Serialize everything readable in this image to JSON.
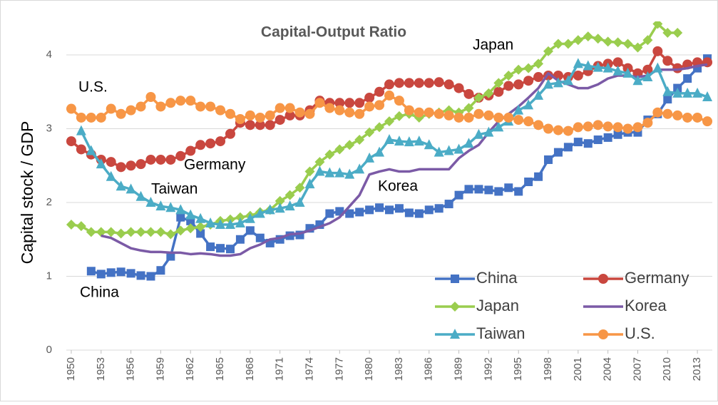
{
  "chart_data": {
    "type": "line",
    "title": "Capital-Output Ratio",
    "y_label": "Capital stock / GDP",
    "annotations": [
      "U.S.",
      "Germany",
      "Taiwan",
      "China",
      "Japan",
      "Korea"
    ],
    "x": [
      1950,
      1951,
      1952,
      1953,
      1954,
      1955,
      1956,
      1957,
      1958,
      1959,
      1960,
      1961,
      1962,
      1963,
      1964,
      1965,
      1966,
      1967,
      1968,
      1969,
      1970,
      1971,
      1972,
      1973,
      1974,
      1975,
      1976,
      1977,
      1978,
      1979,
      1980,
      1981,
      1982,
      1983,
      1984,
      1985,
      1986,
      1987,
      1988,
      1989,
      1990,
      1991,
      1992,
      1993,
      1994,
      1995,
      1996,
      1997,
      1998,
      1999,
      2000,
      2001,
      2002,
      2003,
      2004,
      2005,
      2006,
      2007,
      2008,
      2009,
      2010,
      2011,
      2012,
      2013,
      2014
    ],
    "xlim": [
      1949.5,
      2014.5
    ],
    "xticks": [
      1950,
      1953,
      1956,
      1959,
      1962,
      1965,
      1968,
      1971,
      1974,
      1977,
      1980,
      1983,
      1986,
      1989,
      1992,
      1995,
      1998,
      2001,
      2004,
      2007,
      2010,
      2013
    ],
    "ylim": [
      0,
      4.4
    ],
    "yticks": [
      0,
      1,
      2,
      3,
      4
    ],
    "grid": true,
    "legend": "lower right",
    "series": [
      {
        "name": "China",
        "color": "#4472c4",
        "marker": "square",
        "values": [
          null,
          null,
          1.07,
          1.03,
          1.05,
          1.06,
          1.04,
          1.01,
          1.0,
          1.08,
          1.27,
          1.8,
          1.75,
          1.58,
          1.4,
          1.38,
          1.37,
          1.5,
          1.62,
          1.52,
          1.45,
          1.5,
          1.55,
          1.56,
          1.65,
          1.7,
          1.85,
          1.88,
          1.85,
          1.87,
          1.9,
          1.93,
          1.9,
          1.92,
          1.86,
          1.85,
          1.9,
          1.92,
          1.98,
          2.1,
          2.18,
          2.18,
          2.17,
          2.15,
          2.2,
          2.15,
          2.28,
          2.35,
          2.58,
          2.68,
          2.75,
          2.82,
          2.8,
          2.85,
          2.88,
          2.92,
          2.95,
          2.95,
          3.12,
          3.2,
          3.4,
          3.55,
          3.68,
          3.82,
          3.95
        ]
      },
      {
        "name": "Germany",
        "color": "#c9473f",
        "marker": "circle",
        "values": [
          2.83,
          2.72,
          2.65,
          2.58,
          2.55,
          2.48,
          2.5,
          2.52,
          2.58,
          2.58,
          2.58,
          2.63,
          2.7,
          2.78,
          2.8,
          2.83,
          2.93,
          3.08,
          3.05,
          3.05,
          3.05,
          3.12,
          3.18,
          3.18,
          3.25,
          3.38,
          3.35,
          3.35,
          3.35,
          3.35,
          3.42,
          3.5,
          3.6,
          3.62,
          3.62,
          3.62,
          3.62,
          3.63,
          3.6,
          3.55,
          3.47,
          3.42,
          3.45,
          3.5,
          3.58,
          3.6,
          3.65,
          3.7,
          3.72,
          3.72,
          3.7,
          3.72,
          3.78,
          3.85,
          3.88,
          3.9,
          3.82,
          3.75,
          3.8,
          4.05,
          3.92,
          3.82,
          3.87,
          3.9,
          3.9
        ]
      },
      {
        "name": "Japan",
        "color": "#9acd4e",
        "marker": "diamond",
        "values": [
          1.7,
          1.68,
          1.6,
          1.6,
          1.6,
          1.58,
          1.6,
          1.6,
          1.6,
          1.6,
          1.57,
          1.62,
          1.65,
          1.67,
          1.7,
          1.75,
          1.77,
          1.8,
          1.82,
          1.87,
          1.9,
          2.02,
          2.1,
          2.2,
          2.42,
          2.55,
          2.65,
          2.72,
          2.78,
          2.85,
          2.95,
          3.02,
          3.1,
          3.17,
          3.2,
          3.15,
          3.2,
          3.22,
          3.25,
          3.22,
          3.28,
          3.42,
          3.48,
          3.62,
          3.72,
          3.8,
          3.82,
          3.88,
          4.05,
          4.15,
          4.15,
          4.2,
          4.25,
          4.22,
          4.18,
          4.17,
          4.15,
          4.1,
          4.2,
          4.42,
          4.3,
          4.3,
          null,
          null,
          null
        ]
      },
      {
        "name": "Korea",
        "color": "#7b5aa6",
        "marker": "none",
        "values": [
          null,
          null,
          null,
          1.55,
          1.52,
          1.45,
          1.38,
          1.35,
          1.33,
          1.33,
          1.32,
          1.32,
          1.3,
          1.31,
          1.3,
          1.28,
          1.28,
          1.3,
          1.38,
          1.43,
          1.5,
          1.52,
          1.57,
          1.58,
          1.62,
          1.67,
          1.72,
          1.8,
          1.95,
          2.1,
          2.38,
          2.42,
          2.45,
          2.42,
          2.42,
          2.45,
          2.45,
          2.45,
          2.45,
          2.6,
          2.7,
          2.78,
          2.95,
          3.1,
          3.2,
          3.3,
          3.42,
          3.55,
          3.75,
          3.65,
          3.6,
          3.55,
          3.55,
          3.6,
          3.68,
          3.72,
          3.72,
          3.7,
          3.72,
          3.8,
          3.8,
          3.8,
          3.82,
          3.85,
          3.87
        ]
      },
      {
        "name": "Taiwan",
        "color": "#4bacc6",
        "marker": "triangle",
        "values": [
          null,
          2.97,
          2.7,
          2.52,
          2.35,
          2.22,
          2.18,
          2.08,
          2.0,
          1.95,
          1.93,
          1.9,
          1.83,
          1.78,
          1.72,
          1.7,
          1.7,
          1.72,
          1.78,
          1.85,
          1.9,
          1.92,
          1.95,
          2.0,
          2.25,
          2.42,
          2.4,
          2.4,
          2.38,
          2.45,
          2.6,
          2.68,
          2.85,
          2.83,
          2.82,
          2.83,
          2.78,
          2.68,
          2.7,
          2.72,
          2.8,
          2.92,
          2.95,
          3.02,
          3.1,
          3.25,
          3.32,
          3.45,
          3.6,
          3.62,
          3.65,
          3.88,
          3.85,
          3.83,
          3.82,
          3.78,
          3.75,
          3.65,
          3.7,
          3.82,
          3.5,
          3.48,
          3.48,
          3.48,
          3.43
        ]
      },
      {
        "name": "U.S.",
        "color": "#f79646",
        "marker": "circle",
        "values": [
          3.27,
          3.15,
          3.15,
          3.15,
          3.27,
          3.2,
          3.25,
          3.3,
          3.43,
          3.3,
          3.35,
          3.38,
          3.38,
          3.3,
          3.3,
          3.25,
          3.2,
          3.13,
          3.18,
          3.15,
          3.18,
          3.28,
          3.28,
          3.22,
          3.2,
          3.35,
          3.28,
          3.25,
          3.22,
          3.2,
          3.3,
          3.32,
          3.45,
          3.38,
          3.25,
          3.22,
          3.22,
          3.2,
          3.18,
          3.15,
          3.15,
          3.2,
          3.18,
          3.15,
          3.15,
          3.12,
          3.1,
          3.05,
          3.0,
          2.98,
          2.97,
          3.02,
          3.03,
          3.05,
          3.03,
          3.02,
          3.0,
          3.02,
          3.08,
          3.22,
          3.2,
          3.18,
          3.15,
          3.15,
          3.1
        ]
      }
    ]
  }
}
